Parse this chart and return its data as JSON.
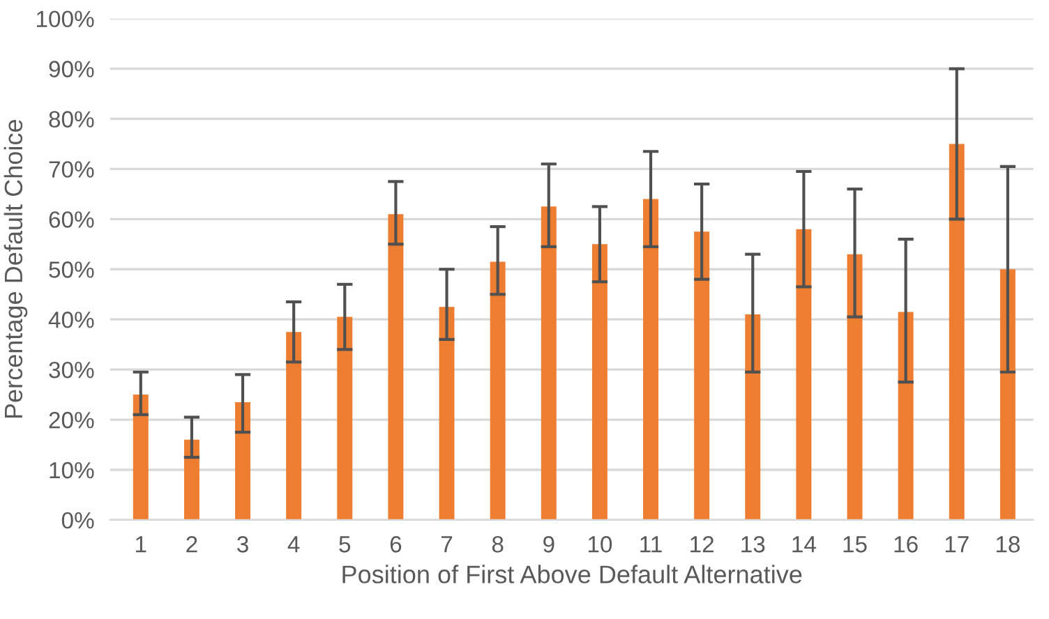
{
  "chart_data": {
    "type": "bar",
    "xlabel": "Position of First Above Default Alternative",
    "ylabel": "Percentage Default Choice",
    "categories": [
      "1",
      "2",
      "3",
      "4",
      "5",
      "6",
      "7",
      "8",
      "9",
      "10",
      "11",
      "12",
      "13",
      "14",
      "15",
      "16",
      "17",
      "18"
    ],
    "values": [
      25,
      16,
      23.5,
      37.5,
      40.5,
      61,
      42.5,
      51.5,
      62.5,
      55,
      64,
      57.5,
      41,
      58,
      53,
      41.5,
      75,
      50
    ],
    "errors": [
      [
        21,
        29.5
      ],
      [
        12.5,
        20.5
      ],
      [
        17.5,
        29
      ],
      [
        31.5,
        43.5
      ],
      [
        34,
        47
      ],
      [
        55,
        67.5
      ],
      [
        36,
        50
      ],
      [
        45,
        58.5
      ],
      [
        54.5,
        71
      ],
      [
        47.5,
        62.5
      ],
      [
        54.5,
        73.5
      ],
      [
        48,
        67
      ],
      [
        29.5,
        53
      ],
      [
        46.5,
        69.5
      ],
      [
        40.5,
        66
      ],
      [
        27.5,
        56
      ],
      [
        60,
        90
      ],
      [
        29.5,
        70.5
      ]
    ],
    "color": "#ed7d31",
    "ylim": [
      0,
      100
    ],
    "yticks": [
      {
        "value": 0,
        "label": "0%"
      },
      {
        "value": 10,
        "label": "10%"
      },
      {
        "value": 20,
        "label": "20%"
      },
      {
        "value": 30,
        "label": "30%"
      },
      {
        "value": 40,
        "label": "40%"
      },
      {
        "value": 50,
        "label": "50%"
      },
      {
        "value": 60,
        "label": "60%"
      },
      {
        "value": 70,
        "label": "70%"
      },
      {
        "value": 80,
        "label": "80%"
      },
      {
        "value": 90,
        "label": "90%"
      },
      {
        "value": 100,
        "label": "100%"
      }
    ],
    "grid": "y",
    "legend": false
  }
}
